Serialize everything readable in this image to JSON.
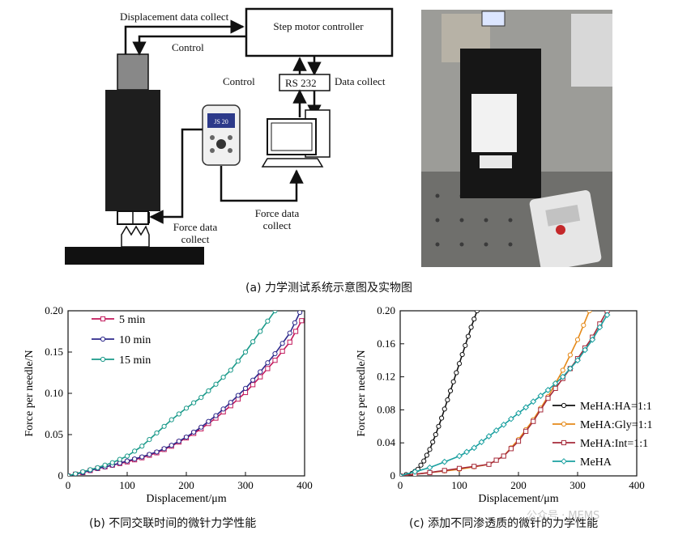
{
  "panel_a": {
    "labels": {
      "displacement": "Displacement data collect",
      "control_top": "Control",
      "controller": "Step motor controller",
      "control_left": "Control",
      "rs232": "RS 232",
      "data_collect": "Data collect",
      "force_collect_left": "Force data collect",
      "force_collect_mid": "Force data collect",
      "gauge_reading": "JS 20"
    },
    "caption": "(a) 力学测试系统示意图及实物图"
  },
  "panel_b": {
    "caption": "(b) 不同交联时间的微针力学性能"
  },
  "panel_c": {
    "caption": "(c) 添加不同渗透质的微针的力学性能"
  },
  "watermark": "公众号 · MEMS",
  "chart_data": [
    {
      "type": "line",
      "xlabel": "Displacement/μm",
      "ylabel": "Force per needle/N",
      "xlim": [
        0,
        400
      ],
      "ylim": [
        0,
        0.2
      ],
      "xticks": [
        "0",
        "100",
        "200",
        "300",
        "400"
      ],
      "yticks": [
        "0",
        "0.05",
        "0.10",
        "0.15",
        "0.20"
      ],
      "legend_position": "top-left",
      "series": [
        {
          "name": "5 min",
          "color": "#c2185b",
          "marker": "square",
          "x": [
            0,
            25,
            50,
            75,
            100,
            125,
            150,
            175,
            200,
            225,
            250,
            275,
            300,
            325,
            350,
            375,
            395
          ],
          "y": [
            0,
            0.004,
            0.009,
            0.013,
            0.017,
            0.022,
            0.028,
            0.036,
            0.046,
            0.057,
            0.07,
            0.085,
            0.101,
            0.12,
            0.14,
            0.162,
            0.188
          ]
        },
        {
          "name": "10 min",
          "color": "#2e2a8c",
          "marker": "circle",
          "x": [
            0,
            25,
            50,
            75,
            100,
            125,
            150,
            175,
            200,
            225,
            250,
            275,
            300,
            325,
            350,
            375,
            392
          ],
          "y": [
            0,
            0.004,
            0.009,
            0.013,
            0.018,
            0.023,
            0.029,
            0.037,
            0.047,
            0.059,
            0.073,
            0.089,
            0.106,
            0.126,
            0.148,
            0.173,
            0.198
          ]
        },
        {
          "name": "15 min",
          "color": "#1a9a8a",
          "marker": "circle",
          "x": [
            0,
            25,
            50,
            75,
            100,
            125,
            150,
            175,
            200,
            225,
            250,
            275,
            300,
            325,
            350
          ],
          "y": [
            0,
            0.005,
            0.01,
            0.016,
            0.024,
            0.036,
            0.052,
            0.068,
            0.082,
            0.095,
            0.111,
            0.128,
            0.15,
            0.175,
            0.2
          ]
        }
      ]
    },
    {
      "type": "line",
      "xlabel": "Displacement/μm",
      "ylabel": "Force per needle/N",
      "xlim": [
        0,
        400
      ],
      "ylim": [
        0,
        0.2
      ],
      "xticks": [
        "0",
        "100",
        "200",
        "300",
        "400"
      ],
      "yticks": [
        "0",
        "0.04",
        "0.08",
        "0.12",
        "0.16",
        "0.20"
      ],
      "legend_position": "right",
      "series": [
        {
          "name": "MeHA:HA=1:1",
          "color": "#111111",
          "marker": "circle",
          "x": [
            0,
            20,
            30,
            40,
            50,
            60,
            70,
            80,
            90,
            100,
            110,
            120,
            130
          ],
          "y": [
            0,
            0.003,
            0.008,
            0.018,
            0.032,
            0.05,
            0.07,
            0.092,
            0.114,
            0.136,
            0.158,
            0.18,
            0.2
          ]
        },
        {
          "name": "MeHA:Gly=1:1",
          "color": "#e58a1a",
          "marker": "circle",
          "x": [
            0,
            50,
            100,
            150,
            175,
            200,
            225,
            250,
            275,
            300,
            320
          ],
          "y": [
            0,
            0.004,
            0.008,
            0.014,
            0.024,
            0.044,
            0.068,
            0.096,
            0.128,
            0.165,
            0.2
          ]
        },
        {
          "name": "MeHA:Int=1:1",
          "color": "#a62a3a",
          "marker": "square",
          "x": [
            0,
            50,
            100,
            150,
            175,
            200,
            225,
            250,
            275,
            300,
            325,
            350
          ],
          "y": [
            0,
            0.004,
            0.009,
            0.014,
            0.024,
            0.042,
            0.066,
            0.094,
            0.118,
            0.142,
            0.168,
            0.2
          ]
        },
        {
          "name": "MeHA",
          "color": "#1aa0a0",
          "marker": "diamond",
          "x": [
            0,
            50,
            100,
            125,
            150,
            175,
            200,
            225,
            250,
            275,
            300,
            325,
            350
          ],
          "y": [
            0,
            0.01,
            0.024,
            0.034,
            0.048,
            0.062,
            0.076,
            0.09,
            0.104,
            0.12,
            0.14,
            0.165,
            0.195
          ]
        }
      ]
    }
  ]
}
